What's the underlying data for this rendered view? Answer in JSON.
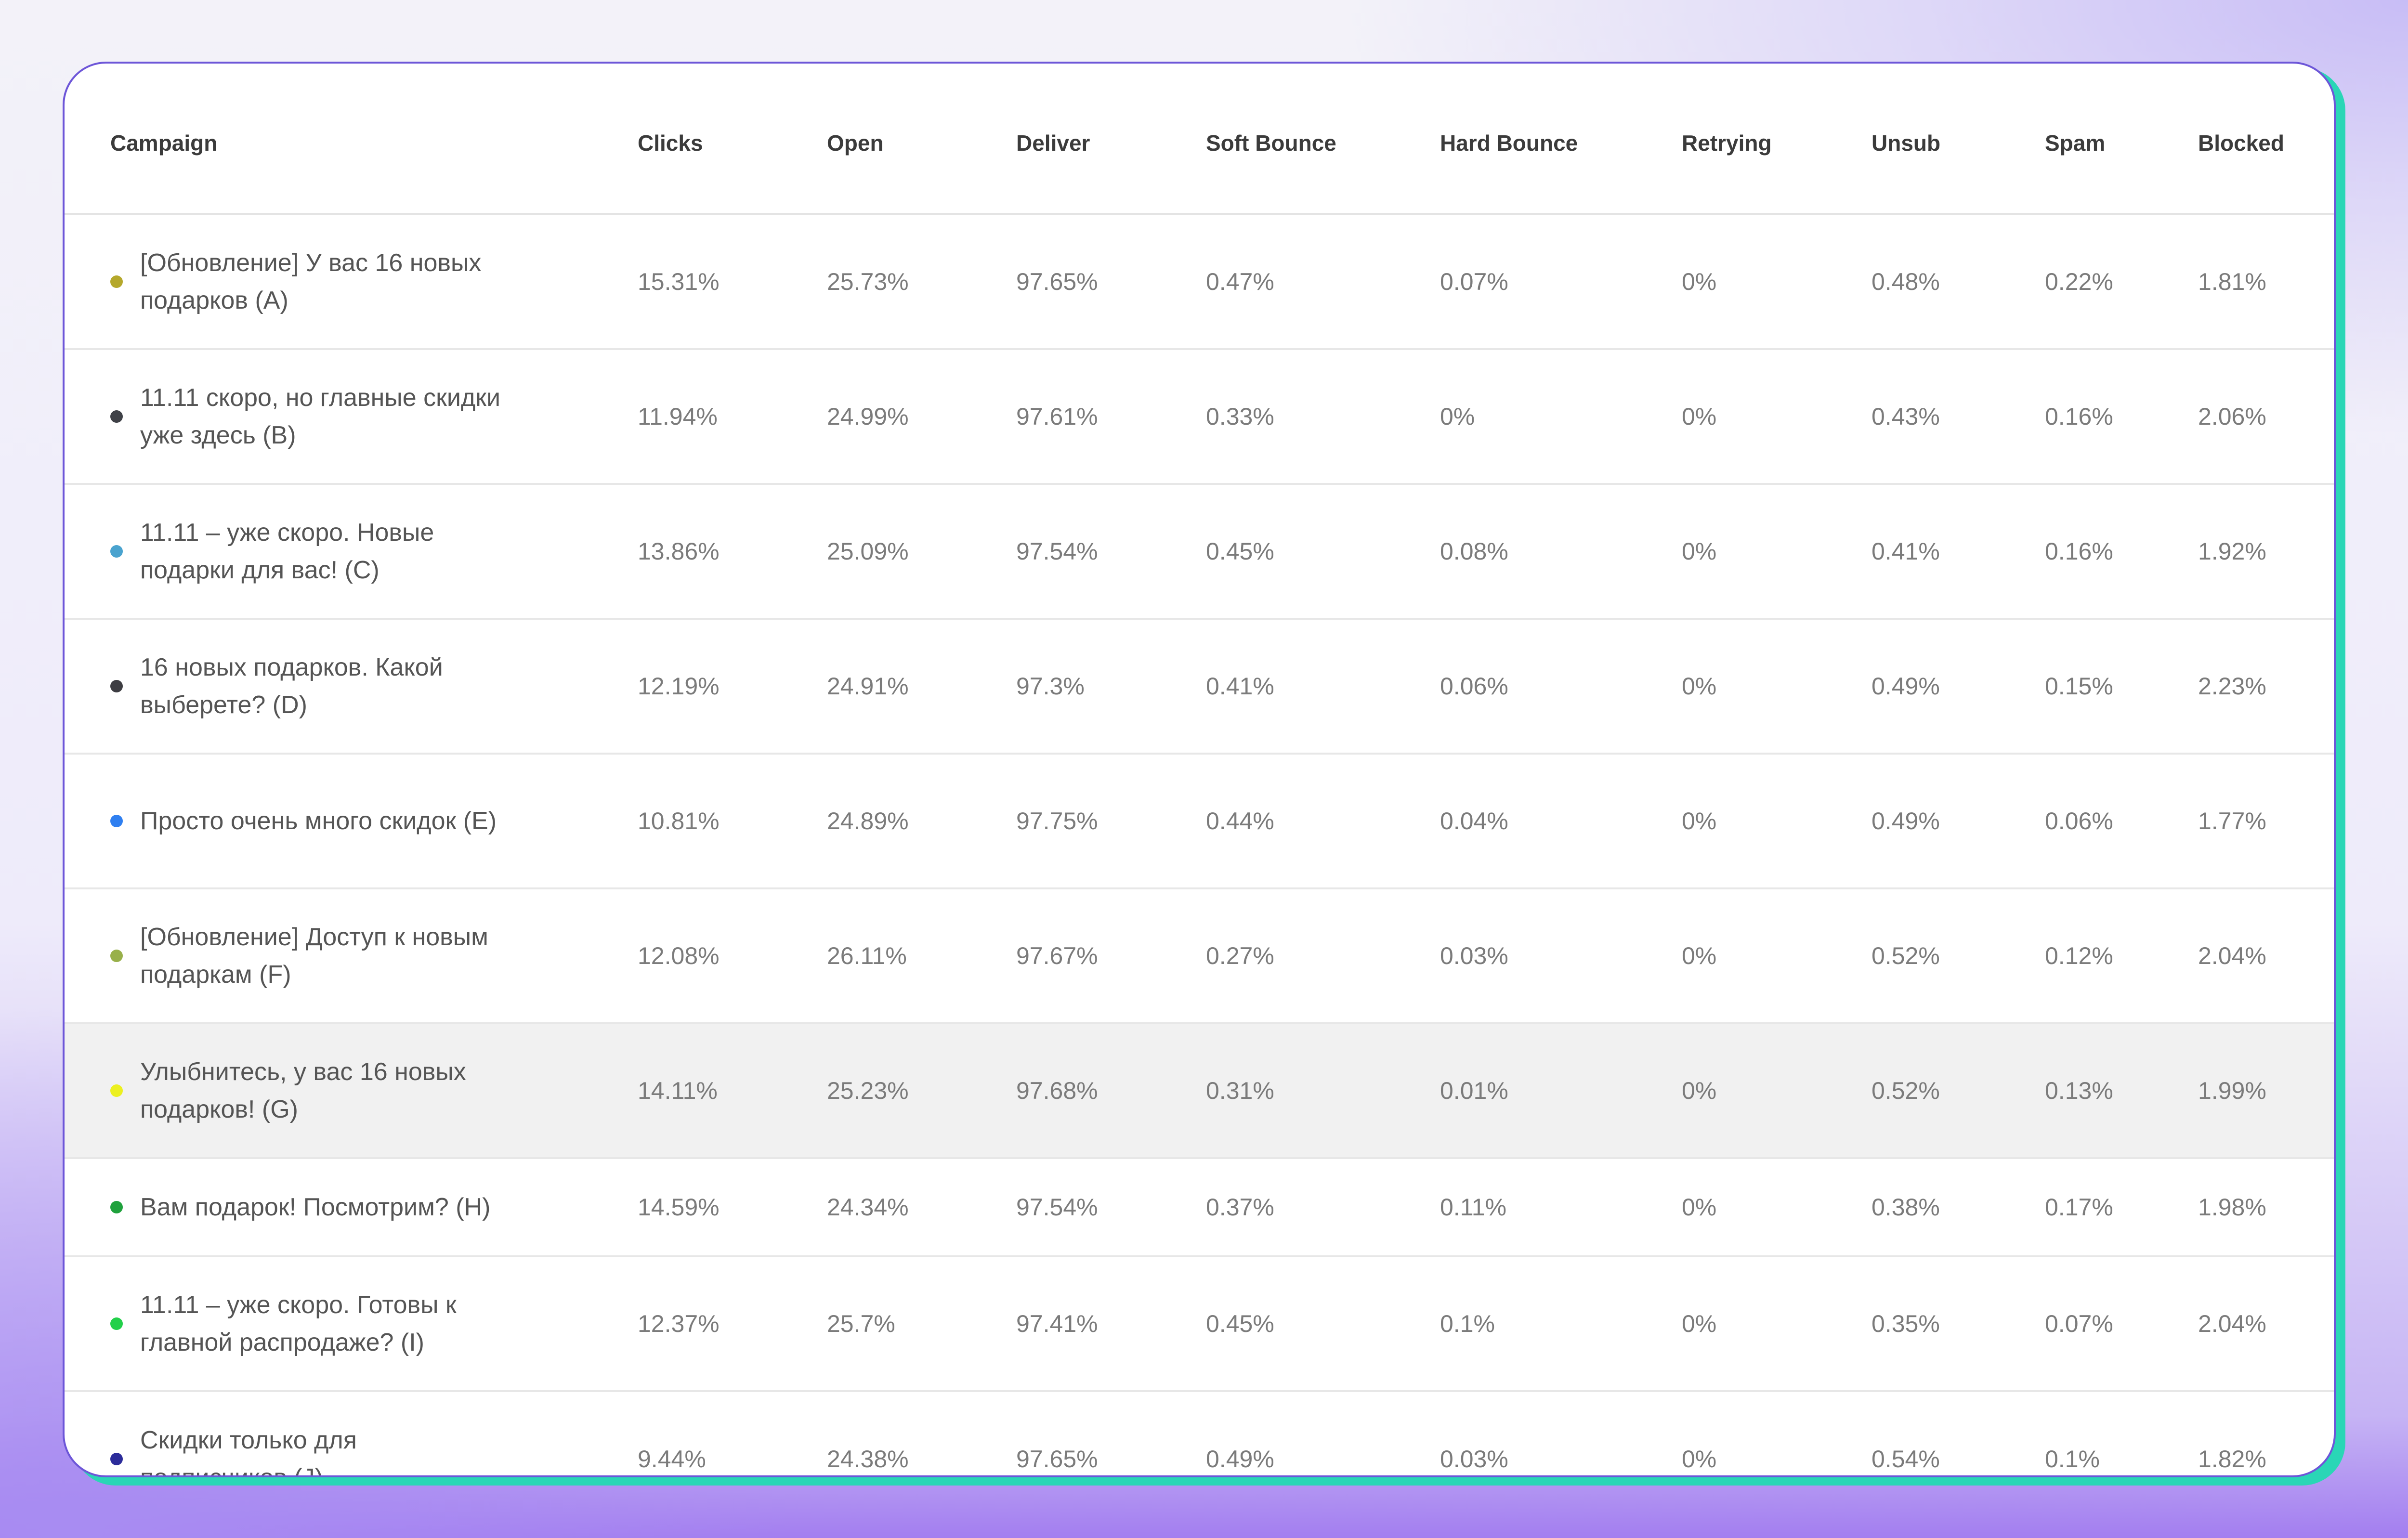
{
  "table": {
    "columns": [
      "Campaign",
      "Clicks",
      "Open",
      "Deliver",
      "Soft Bounce",
      "Hard Bounce",
      "Retrying",
      "Unsub",
      "Spam",
      "Blocked"
    ],
    "rows": [
      {
        "campaign": "[Обновление] У вас 16 новых подарков (A)",
        "dot_color": "#b5a82c",
        "clicks": "15.31%",
        "open": "25.73%",
        "deliver": "97.65%",
        "soft_bounce": "0.47%",
        "hard_bounce": "0.07%",
        "retrying": "0%",
        "unsub": "0.48%",
        "spam": "0.22%",
        "blocked": "1.81%"
      },
      {
        "campaign": "11.11 скоро, но главные скидки уже здесь (B)",
        "dot_color": "#3f4147",
        "clicks": "11.94%",
        "open": "24.99%",
        "deliver": "97.61%",
        "soft_bounce": "0.33%",
        "hard_bounce": "0%",
        "retrying": "0%",
        "unsub": "0.43%",
        "spam": "0.16%",
        "blocked": "2.06%"
      },
      {
        "campaign": "11.11 – уже скоро. Новые подарки для вас! (C)",
        "dot_color": "#4aa3cf",
        "clicks": "13.86%",
        "open": "25.09%",
        "deliver": "97.54%",
        "soft_bounce": "0.45%",
        "hard_bounce": "0.08%",
        "retrying": "0%",
        "unsub": "0.41%",
        "spam": "0.16%",
        "blocked": "1.92%"
      },
      {
        "campaign": "16 новых подарков. Какой выберете? (D)",
        "dot_color": "#3d3d42",
        "clicks": "12.19%",
        "open": "24.91%",
        "deliver": "97.3%",
        "soft_bounce": "0.41%",
        "hard_bounce": "0.06%",
        "retrying": "0%",
        "unsub": "0.49%",
        "spam": "0.15%",
        "blocked": "2.23%"
      },
      {
        "campaign": "Просто очень много скидок (E)",
        "dot_color": "#2f7ff0",
        "clicks": "10.81%",
        "open": "24.89%",
        "deliver": "97.75%",
        "soft_bounce": "0.44%",
        "hard_bounce": "0.04%",
        "retrying": "0%",
        "unsub": "0.49%",
        "spam": "0.06%",
        "blocked": "1.77%"
      },
      {
        "campaign": "[Обновление] Доступ к новым подаркам (F)",
        "dot_color": "#98b04a",
        "clicks": "12.08%",
        "open": "26.11%",
        "deliver": "97.67%",
        "soft_bounce": "0.27%",
        "hard_bounce": "0.03%",
        "retrying": "0%",
        "unsub": "0.52%",
        "spam": "0.12%",
        "blocked": "2.04%"
      },
      {
        "campaign": "Улыбнитесь, у вас 16 новых подарков! (G)",
        "dot_color": "#ecf020",
        "clicks": "14.11%",
        "open": "25.23%",
        "deliver": "97.68%",
        "soft_bounce": "0.31%",
        "hard_bounce": "0.01%",
        "retrying": "0%",
        "unsub": "0.52%",
        "spam": "0.13%",
        "blocked": "1.99%"
      },
      {
        "campaign": "Вам подарок! Посмотрим? (H)",
        "dot_color": "#1fa13c",
        "clicks": "14.59%",
        "open": "24.34%",
        "deliver": "97.54%",
        "soft_bounce": "0.37%",
        "hard_bounce": "0.11%",
        "retrying": "0%",
        "unsub": "0.38%",
        "spam": "0.17%",
        "blocked": "1.98%"
      },
      {
        "campaign": "11.11 – уже скоро. Готовы к главной распродаже? (I)",
        "dot_color": "#22d04a",
        "clicks": "12.37%",
        "open": "25.7%",
        "deliver": "97.41%",
        "soft_bounce": "0.45%",
        "hard_bounce": "0.1%",
        "retrying": "0%",
        "unsub": "0.35%",
        "spam": "0.07%",
        "blocked": "2.04%"
      },
      {
        "campaign": "Скидки только для подписчиков (J)",
        "dot_color": "#2c2c9a",
        "clicks": "9.44%",
        "open": "24.38%",
        "deliver": "97.65%",
        "soft_bounce": "0.49%",
        "hard_bounce": "0.03%",
        "retrying": "0%",
        "unsub": "0.54%",
        "spam": "0.1%",
        "blocked": "1.82%"
      }
    ]
  },
  "colors": {
    "accent_border": "#6d56d8",
    "accent_shadow": "#2ad6b6",
    "highlight_row": "#f1f1f1"
  }
}
